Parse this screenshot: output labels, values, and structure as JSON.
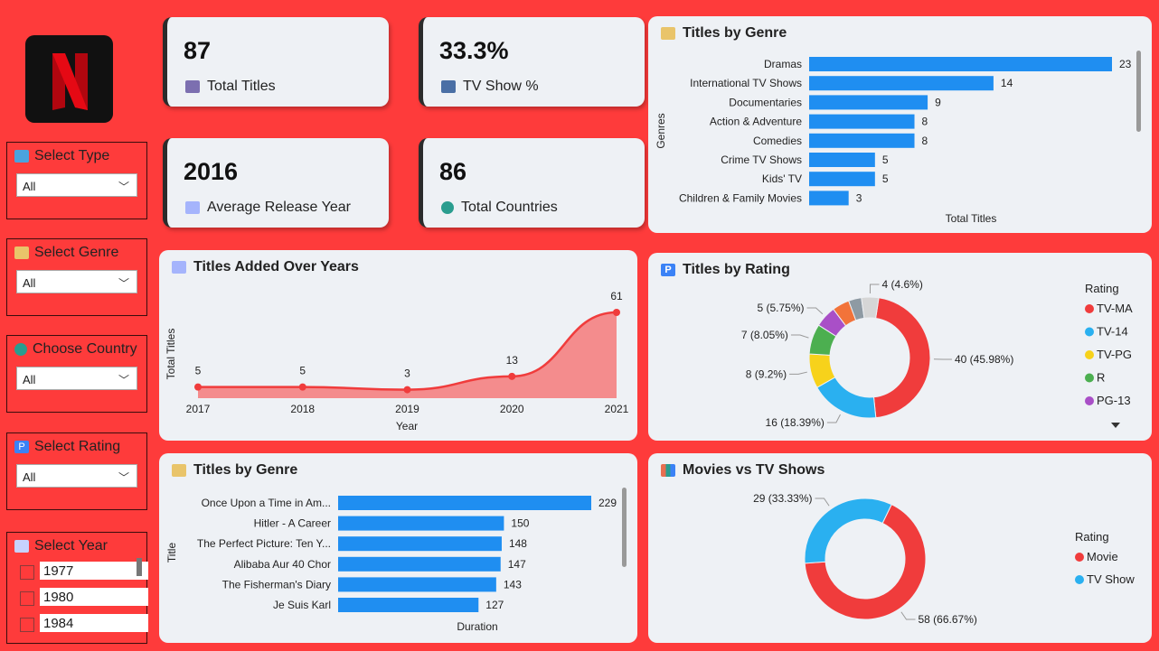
{
  "kpis": [
    {
      "value": "87",
      "label": "Total Titles",
      "icon": "clapper-icon"
    },
    {
      "value": "33.3%",
      "label": "TV Show %",
      "icon": "tv-icon"
    },
    {
      "value": "2016",
      "label": "Average Release Year",
      "icon": "calendar-icon"
    },
    {
      "value": "86",
      "label": "Total Countries",
      "icon": "globe-icon"
    }
  ],
  "slicers": {
    "type": {
      "title": "Select Type",
      "value": "All"
    },
    "genre": {
      "title": "Select Genre",
      "value": "All"
    },
    "country": {
      "title": "Choose Country",
      "value": "All"
    },
    "rating": {
      "title": "Select Rating",
      "value": "All"
    },
    "year": {
      "title": "Select Year",
      "items": [
        "1977",
        "1980",
        "1984"
      ]
    }
  },
  "chart_data": [
    {
      "id": "genre_chart",
      "type": "bar",
      "title": "Titles by Genre",
      "ylabel": "Genres",
      "xlabel": "Total Titles",
      "categories": [
        "Dramas",
        "International TV Shows",
        "Documentaries",
        "Action & Adventure",
        "Comedies",
        "Crime TV Shows",
        "Kids' TV",
        "Children & Family Movies"
      ],
      "values": [
        23,
        14,
        9,
        8,
        8,
        5,
        5,
        3
      ],
      "color": "#1f8ef1"
    },
    {
      "id": "years_chart",
      "type": "area",
      "title": "Titles Added Over Years",
      "xlabel": "Year",
      "ylabel": "Total Titles",
      "x": [
        "2017",
        "2018",
        "2019",
        "2020",
        "2021"
      ],
      "values": [
        5,
        5,
        3,
        13,
        61
      ],
      "color": "#f03c3c"
    },
    {
      "id": "rating_chart",
      "type": "pie",
      "title": "Titles by Rating",
      "legend_title": "Rating",
      "slices": [
        {
          "name": "TV-MA",
          "value": 40,
          "label": "40 (45.98%)",
          "color": "#f03c3c"
        },
        {
          "name": "TV-14",
          "value": 16,
          "label": "16 (18.39%)",
          "color": "#2ab0f0"
        },
        {
          "name": "TV-PG",
          "value": 8,
          "label": "8 (9.2%)",
          "color": "#f7d21b"
        },
        {
          "name": "R",
          "value": 7,
          "label": "7 (8.05%)",
          "color": "#4caf50"
        },
        {
          "name": "PG-13",
          "value": 5,
          "label": "5 (5.75%)",
          "color": "#a94fc7"
        },
        {
          "name": "",
          "value": 4,
          "label": "",
          "color": "#f2733a"
        },
        {
          "name": "",
          "value": 3,
          "label": "",
          "color": "#8e9aa3"
        },
        {
          "name": "",
          "value": 4,
          "label": "4 (4.6%)",
          "color": "#d6d6d6"
        }
      ],
      "legend": [
        "TV-MA",
        "TV-14",
        "TV-PG",
        "R",
        "PG-13"
      ]
    },
    {
      "id": "duration_chart",
      "type": "bar",
      "title": "Titles by Genre",
      "ylabel": "Title",
      "xlabel": "Duration",
      "categories": [
        "Once Upon a Time in Am...",
        "Hitler - A Career",
        "The Perfect Picture: Ten Y...",
        "Alibaba Aur 40 Chor",
        "The Fisherman's Diary",
        "Je Suis Karl"
      ],
      "values": [
        229,
        150,
        148,
        147,
        143,
        127
      ],
      "color": "#1f8ef1"
    },
    {
      "id": "type_chart",
      "type": "pie",
      "title": "Movies vs TV Shows",
      "legend_title": "Rating",
      "slices": [
        {
          "name": "Movie",
          "value": 58,
          "label": "58 (66.67%)",
          "color": "#f03c3c"
        },
        {
          "name": "TV Show",
          "value": 29,
          "label": "29 (33.33%)",
          "color": "#2ab0f0"
        }
      ],
      "legend": [
        "Movie",
        "TV Show"
      ]
    }
  ],
  "colors": {
    "background": "#fe3b3b",
    "card": "#eef1f5",
    "bar": "#1f8ef1",
    "accent": "#f03c3c"
  }
}
